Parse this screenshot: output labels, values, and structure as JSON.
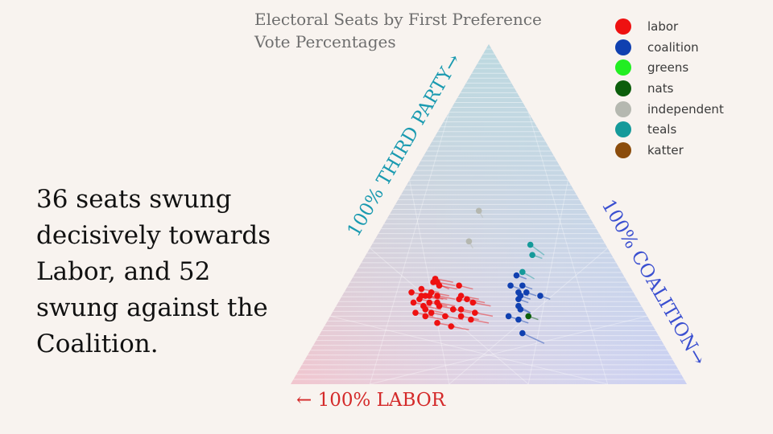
{
  "caption": "36 seats swung decisively towards Labor, and 52 swung against the Coalition.",
  "chart_data": {
    "type": "scatter",
    "subtype": "ternary",
    "title_lines": [
      "Electoral Seats by First Preference",
      "Vote Percentages"
    ],
    "axes": {
      "labor": "← 100% LABOR",
      "third_party": "100% THIRD PARTY→",
      "coalition": "100% COALITION→"
    },
    "grid": true,
    "legend_position": "top-right",
    "legend": [
      {
        "name": "labor",
        "color": "#ee1111"
      },
      {
        "name": "coalition",
        "color": "#1040b0"
      },
      {
        "name": "greens",
        "color": "#22ee22"
      },
      {
        "name": "nats",
        "color": "#0b5e0b"
      },
      {
        "name": "independent",
        "color": "#b5b8b0"
      },
      {
        "name": "teals",
        "color": "#159a9a"
      },
      {
        "name": "katter",
        "color": "#8b4c0c"
      }
    ],
    "axis_colors": {
      "labor": "#d42a2a",
      "third_party": "#1a9ab0",
      "coalition": "#3a4fd0"
    },
    "points": [
      {
        "party": "independent",
        "labor": 0.27,
        "coalition": 0.22,
        "third_party": 0.51,
        "prev": {
          "labor": 0.27,
          "coalition": 0.24,
          "third_party": 0.49
        }
      },
      {
        "party": "independent",
        "labor": 0.34,
        "coalition": 0.24,
        "third_party": 0.42,
        "prev": {
          "labor": 0.34,
          "coalition": 0.26,
          "third_party": 0.4
        }
      },
      {
        "party": "teals",
        "labor": 0.19,
        "coalition": 0.4,
        "third_party": 0.41,
        "prev": {
          "labor": 0.17,
          "coalition": 0.45,
          "third_party": 0.38
        }
      },
      {
        "party": "teals",
        "labor": 0.2,
        "coalition": 0.42,
        "third_party": 0.38,
        "prev": {
          "labor": 0.18,
          "coalition": 0.45,
          "third_party": 0.37
        }
      },
      {
        "party": "teals",
        "labor": 0.25,
        "coalition": 0.42,
        "third_party": 0.33,
        "prev": {
          "labor": 0.23,
          "coalition": 0.46,
          "third_party": 0.31
        }
      },
      {
        "party": "coalition",
        "labor": 0.27,
        "coalition": 0.41,
        "third_party": 0.32,
        "prev": {
          "labor": 0.25,
          "coalition": 0.44,
          "third_party": 0.31
        }
      },
      {
        "party": "coalition",
        "labor": 0.27,
        "coalition": 0.44,
        "third_party": 0.29,
        "prev": {
          "labor": 0.25,
          "coalition": 0.47,
          "third_party": 0.28
        }
      },
      {
        "party": "coalition",
        "labor": 0.3,
        "coalition": 0.41,
        "third_party": 0.29,
        "prev": {
          "labor": 0.28,
          "coalition": 0.44,
          "third_party": 0.28
        }
      },
      {
        "party": "coalition",
        "labor": 0.27,
        "coalition": 0.46,
        "third_party": 0.27,
        "prev": {
          "labor": 0.25,
          "coalition": 0.49,
          "third_party": 0.26
        }
      },
      {
        "party": "coalition",
        "labor": 0.29,
        "coalition": 0.44,
        "third_party": 0.27,
        "prev": {
          "labor": 0.27,
          "coalition": 0.47,
          "third_party": 0.26
        }
      },
      {
        "party": "coalition",
        "labor": 0.29,
        "coalition": 0.45,
        "third_party": 0.26,
        "prev": {
          "labor": 0.27,
          "coalition": 0.48,
          "third_party": 0.25
        }
      },
      {
        "party": "coalition",
        "labor": 0.3,
        "coalition": 0.45,
        "third_party": 0.25,
        "prev": {
          "labor": 0.28,
          "coalition": 0.48,
          "third_party": 0.24
        }
      },
      {
        "party": "coalition",
        "labor": 0.24,
        "coalition": 0.5,
        "third_party": 0.26,
        "prev": {
          "labor": 0.22,
          "coalition": 0.53,
          "third_party": 0.25
        }
      },
      {
        "party": "coalition",
        "labor": 0.31,
        "coalition": 0.46,
        "third_party": 0.23,
        "prev": {
          "labor": 0.29,
          "coalition": 0.5,
          "third_party": 0.21
        }
      },
      {
        "party": "coalition",
        "labor": 0.31,
        "coalition": 0.47,
        "third_party": 0.22,
        "prev": {
          "labor": 0.29,
          "coalition": 0.5,
          "third_party": 0.21
        }
      },
      {
        "party": "coalition",
        "labor": 0.35,
        "coalition": 0.45,
        "third_party": 0.2,
        "prev": {
          "labor": 0.33,
          "coalition": 0.48,
          "third_party": 0.19
        }
      },
      {
        "party": "coalition",
        "labor": 0.33,
        "coalition": 0.48,
        "third_party": 0.19,
        "prev": {
          "labor": 0.31,
          "coalition": 0.51,
          "third_party": 0.18
        }
      },
      {
        "party": "coalition",
        "labor": 0.34,
        "coalition": 0.51,
        "third_party": 0.15,
        "prev": {
          "labor": 0.3,
          "coalition": 0.58,
          "third_party": 0.12
        }
      },
      {
        "party": "nats",
        "labor": 0.3,
        "coalition": 0.5,
        "third_party": 0.2,
        "prev": {
          "labor": 0.28,
          "coalition": 0.53,
          "third_party": 0.19
        }
      },
      {
        "party": "labor",
        "labor": 0.48,
        "coalition": 0.21,
        "third_party": 0.31,
        "prev": {
          "labor": 0.44,
          "coalition": 0.26,
          "third_party": 0.3
        }
      },
      {
        "party": "labor",
        "labor": 0.49,
        "coalition": 0.21,
        "third_party": 0.3,
        "prev": {
          "labor": 0.46,
          "coalition": 0.26,
          "third_party": 0.28
        }
      },
      {
        "party": "labor",
        "labor": 0.48,
        "coalition": 0.22,
        "third_party": 0.3,
        "prev": {
          "labor": 0.44,
          "coalition": 0.27,
          "third_party": 0.29
        }
      },
      {
        "party": "labor",
        "labor": 0.48,
        "coalition": 0.23,
        "third_party": 0.29,
        "prev": {
          "labor": 0.44,
          "coalition": 0.28,
          "third_party": 0.28
        }
      },
      {
        "party": "labor",
        "labor": 0.43,
        "coalition": 0.28,
        "third_party": 0.29,
        "prev": {
          "labor": 0.4,
          "coalition": 0.32,
          "third_party": 0.28
        }
      },
      {
        "party": "labor",
        "labor": 0.56,
        "coalition": 0.17,
        "third_party": 0.27,
        "prev": {
          "labor": 0.52,
          "coalition": 0.22,
          "third_party": 0.26
        }
      },
      {
        "party": "labor",
        "labor": 0.53,
        "coalition": 0.19,
        "third_party": 0.28,
        "prev": {
          "labor": 0.49,
          "coalition": 0.24,
          "third_party": 0.27
        }
      },
      {
        "party": "labor",
        "labor": 0.53,
        "coalition": 0.21,
        "third_party": 0.26,
        "prev": {
          "labor": 0.49,
          "coalition": 0.26,
          "third_party": 0.25
        }
      },
      {
        "party": "labor",
        "labor": 0.55,
        "coalition": 0.2,
        "third_party": 0.25,
        "prev": {
          "labor": 0.51,
          "coalition": 0.25,
          "third_party": 0.24
        }
      },
      {
        "party": "labor",
        "labor": 0.54,
        "coalition": 0.2,
        "third_party": 0.26,
        "prev": {
          "labor": 0.5,
          "coalition": 0.25,
          "third_party": 0.25
        }
      },
      {
        "party": "labor",
        "labor": 0.51,
        "coalition": 0.22,
        "third_party": 0.27,
        "prev": {
          "labor": 0.47,
          "coalition": 0.27,
          "third_party": 0.26
        }
      },
      {
        "party": "labor",
        "labor": 0.52,
        "coalition": 0.22,
        "third_party": 0.26,
        "prev": {
          "labor": 0.48,
          "coalition": 0.27,
          "third_party": 0.25
        }
      },
      {
        "party": "labor",
        "labor": 0.5,
        "coalition": 0.24,
        "third_party": 0.26,
        "prev": {
          "labor": 0.46,
          "coalition": 0.29,
          "third_party": 0.25
        }
      },
      {
        "party": "labor",
        "labor": 0.57,
        "coalition": 0.19,
        "third_party": 0.24,
        "prev": {
          "labor": 0.53,
          "coalition": 0.24,
          "third_party": 0.23
        }
      },
      {
        "party": "labor",
        "labor": 0.55,
        "coalition": 0.22,
        "third_party": 0.23,
        "prev": {
          "labor": 0.51,
          "coalition": 0.27,
          "third_party": 0.22
        }
      },
      {
        "party": "labor",
        "labor": 0.53,
        "coalition": 0.23,
        "third_party": 0.24,
        "prev": {
          "labor": 0.49,
          "coalition": 0.28,
          "third_party": 0.23
        }
      },
      {
        "party": "labor",
        "labor": 0.51,
        "coalition": 0.25,
        "third_party": 0.24,
        "prev": {
          "labor": 0.47,
          "coalition": 0.3,
          "third_party": 0.23
        }
      },
      {
        "party": "labor",
        "labor": 0.51,
        "coalition": 0.26,
        "third_party": 0.23,
        "prev": {
          "labor": 0.47,
          "coalition": 0.31,
          "third_party": 0.22
        }
      },
      {
        "party": "labor",
        "labor": 0.55,
        "coalition": 0.23,
        "third_party": 0.22,
        "prev": {
          "labor": 0.51,
          "coalition": 0.28,
          "third_party": 0.21
        }
      },
      {
        "party": "labor",
        "labor": 0.54,
        "coalition": 0.25,
        "third_party": 0.21,
        "prev": {
          "labor": 0.5,
          "coalition": 0.3,
          "third_party": 0.2
        }
      },
      {
        "party": "labor",
        "labor": 0.44,
        "coalition": 0.3,
        "third_party": 0.26,
        "prev": {
          "labor": 0.4,
          "coalition": 0.35,
          "third_party": 0.25
        }
      },
      {
        "party": "labor",
        "labor": 0.45,
        "coalition": 0.3,
        "third_party": 0.25,
        "prev": {
          "labor": 0.41,
          "coalition": 0.35,
          "third_party": 0.24
        }
      },
      {
        "party": "labor",
        "labor": 0.43,
        "coalition": 0.32,
        "third_party": 0.25,
        "prev": {
          "labor": 0.39,
          "coalition": 0.37,
          "third_party": 0.24
        }
      },
      {
        "party": "labor",
        "labor": 0.48,
        "coalition": 0.3,
        "third_party": 0.22,
        "prev": {
          "labor": 0.44,
          "coalition": 0.35,
          "third_party": 0.21
        }
      },
      {
        "party": "labor",
        "labor": 0.46,
        "coalition": 0.32,
        "third_party": 0.22,
        "prev": {
          "labor": 0.42,
          "coalition": 0.37,
          "third_party": 0.21
        }
      },
      {
        "party": "labor",
        "labor": 0.42,
        "coalition": 0.34,
        "third_party": 0.24,
        "prev": {
          "labor": 0.38,
          "coalition": 0.39,
          "third_party": 0.23
        }
      },
      {
        "party": "labor",
        "labor": 0.58,
        "coalition": 0.21,
        "third_party": 0.21,
        "prev": {
          "labor": 0.54,
          "coalition": 0.26,
          "third_party": 0.2
        }
      },
      {
        "party": "labor",
        "labor": 0.56,
        "coalition": 0.24,
        "third_party": 0.2,
        "prev": {
          "labor": 0.52,
          "coalition": 0.29,
          "third_party": 0.19
        }
      },
      {
        "party": "labor",
        "labor": 0.51,
        "coalition": 0.29,
        "third_party": 0.2,
        "prev": {
          "labor": 0.47,
          "coalition": 0.34,
          "third_party": 0.19
        }
      },
      {
        "party": "labor",
        "labor": 0.47,
        "coalition": 0.33,
        "third_party": 0.2,
        "prev": {
          "labor": 0.43,
          "coalition": 0.38,
          "third_party": 0.19
        }
      },
      {
        "party": "labor",
        "labor": 0.54,
        "coalition": 0.28,
        "third_party": 0.18,
        "prev": {
          "labor": 0.5,
          "coalition": 0.33,
          "third_party": 0.17
        }
      },
      {
        "party": "labor",
        "labor": 0.43,
        "coalition": 0.36,
        "third_party": 0.21,
        "prev": {
          "labor": 0.39,
          "coalition": 0.41,
          "third_party": 0.2
        }
      },
      {
        "party": "labor",
        "labor": 0.45,
        "coalition": 0.36,
        "third_party": 0.19,
        "prev": {
          "labor": 0.41,
          "coalition": 0.41,
          "third_party": 0.18
        }
      },
      {
        "party": "labor",
        "labor": 0.51,
        "coalition": 0.32,
        "third_party": 0.17,
        "prev": {
          "labor": 0.47,
          "coalition": 0.37,
          "third_party": 0.16
        }
      }
    ]
  }
}
